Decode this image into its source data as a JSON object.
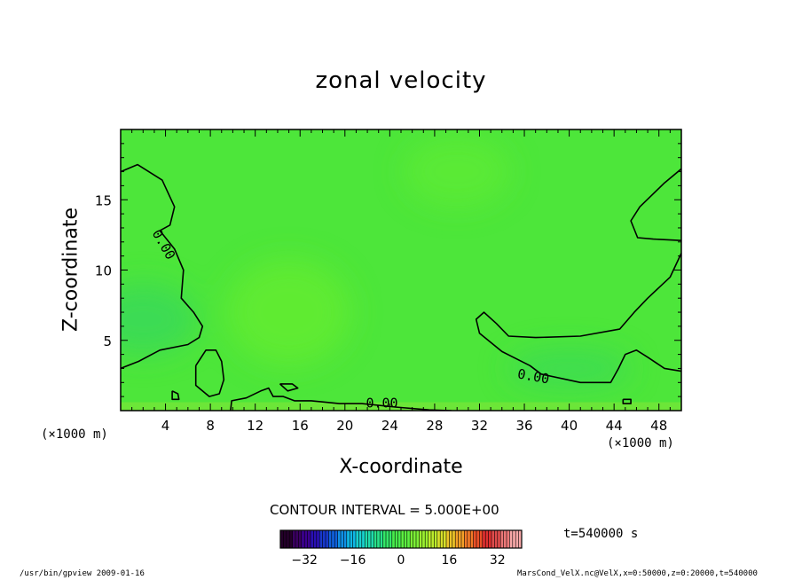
{
  "chart_data": {
    "type": "contour",
    "title": "zonal velocity",
    "xlabel": "X-coordinate",
    "ylabel": "Z-coordinate",
    "x_unit": "(×1000 m)",
    "xlim": [
      0,
      50
    ],
    "ylim": [
      0,
      20
    ],
    "x_ticks": [
      4,
      8,
      12,
      16,
      20,
      24,
      28,
      32,
      36,
      40,
      44,
      48
    ],
    "y_ticks": [
      5,
      10,
      15
    ],
    "contour_interval_text": "CONTOUR INTERVAL = 5.000E+00",
    "contour_labels": [
      {
        "text": "0.00",
        "x": 3.8,
        "y": 11.8,
        "rotation": 60
      },
      {
        "text": "0.00",
        "x": 23.3,
        "y": 0.5,
        "rotation": 0
      },
      {
        "text": "0.00",
        "x": 36.8,
        "y": 2.4,
        "rotation": 10
      }
    ],
    "contours": [
      {
        "level": 0,
        "points": [
          [
            0,
            17.0
          ],
          [
            1.5,
            17.5
          ],
          [
            3.7,
            16.4
          ],
          [
            4.8,
            14.5
          ],
          [
            4.4,
            13.2
          ],
          [
            3.5,
            12.8
          ],
          [
            4.8,
            11.5
          ],
          [
            5.6,
            10.0
          ],
          [
            5.4,
            8.0
          ],
          [
            6.5,
            7.0
          ],
          [
            7.3,
            6.0
          ],
          [
            7.0,
            5.2
          ],
          [
            6.0,
            4.7
          ],
          [
            3.5,
            4.3
          ],
          [
            1.6,
            3.5
          ],
          [
            0,
            3.0
          ]
        ]
      },
      {
        "level": 0,
        "points": [
          [
            6.7,
            3.2
          ],
          [
            7.6,
            4.3
          ],
          [
            8.5,
            4.3
          ],
          [
            9.0,
            3.5
          ],
          [
            9.2,
            2.2
          ],
          [
            8.8,
            1.2
          ],
          [
            7.9,
            1.0
          ],
          [
            6.7,
            1.8
          ],
          [
            6.7,
            3.2
          ]
        ]
      },
      {
        "level": 0,
        "points": [
          [
            4.6,
            1.4
          ],
          [
            5.1,
            1.2
          ],
          [
            5.2,
            0.8
          ],
          [
            4.6,
            0.8
          ],
          [
            4.6,
            1.4
          ]
        ]
      },
      {
        "level": 0,
        "points": [
          [
            9.8,
            0
          ],
          [
            9.9,
            0.7
          ],
          [
            11.2,
            0.9
          ],
          [
            12.5,
            1.4
          ],
          [
            13.2,
            1.6
          ],
          [
            13.6,
            1.0
          ],
          [
            14.5,
            1.0
          ],
          [
            15.5,
            0.7
          ],
          [
            17.0,
            0.7
          ],
          [
            19.5,
            0.5
          ],
          [
            21.5,
            0.5
          ],
          [
            24.5,
            0.25
          ],
          [
            27.5,
            0.05
          ],
          [
            29.5,
            0
          ]
        ]
      },
      {
        "level": 0,
        "points": [
          [
            14.2,
            1.9
          ],
          [
            15.3,
            1.9
          ],
          [
            15.8,
            1.6
          ],
          [
            14.9,
            1.4
          ],
          [
            14.2,
            1.9
          ]
        ]
      },
      {
        "level": 0,
        "points": [
          [
            50,
            2.8
          ],
          [
            48.5,
            3.0
          ],
          [
            47.0,
            3.8
          ],
          [
            46.0,
            4.3
          ],
          [
            45.0,
            4.0
          ],
          [
            44.4,
            3.0
          ],
          [
            43.7,
            2.0
          ],
          [
            41.0,
            2.0
          ],
          [
            37.5,
            2.6
          ],
          [
            36.5,
            3.2
          ],
          [
            34.0,
            4.2
          ],
          [
            32.0,
            5.5
          ],
          [
            31.7,
            6.5
          ],
          [
            32.4,
            7.0
          ],
          [
            33.5,
            6.2
          ],
          [
            34.6,
            5.3
          ],
          [
            37.0,
            5.2
          ],
          [
            41.0,
            5.3
          ],
          [
            44.5,
            5.8
          ],
          [
            45.8,
            7.0
          ],
          [
            47.0,
            8.0
          ],
          [
            49.0,
            9.5
          ],
          [
            50,
            11.2
          ]
        ]
      },
      {
        "level": 0,
        "points": [
          [
            50,
            17.2
          ],
          [
            48.5,
            16.2
          ],
          [
            46.3,
            14.5
          ],
          [
            45.5,
            13.5
          ],
          [
            46.1,
            12.3
          ],
          [
            47.5,
            12.2
          ],
          [
            50,
            12.1
          ]
        ]
      },
      {
        "level": 0,
        "points": [
          [
            44.8,
            0.8
          ],
          [
            45.5,
            0.8
          ],
          [
            45.5,
            0.5
          ],
          [
            44.8,
            0.5
          ],
          [
            44.8,
            0.8
          ]
        ]
      }
    ],
    "colorbar": {
      "ticks": [
        -32,
        -16,
        0,
        16,
        32
      ],
      "range": [
        -40,
        40
      ],
      "colors": [
        "#24002a",
        "#3a0060",
        "#3c0090",
        "#2a10b4",
        "#1838cc",
        "#1060dc",
        "#1090e6",
        "#10b8e6",
        "#18d2d0",
        "#20dcae",
        "#28e28a",
        "#34e868",
        "#48ec4c",
        "#5cf040",
        "#7cf036",
        "#9cf030",
        "#bcec2c",
        "#d8e02a",
        "#ecc428",
        "#f4a028",
        "#f47a28",
        "#ec5028",
        "#e03030",
        "#e04c4c",
        "#ec7878",
        "#f8a8a8"
      ]
    },
    "time_text": "t=540000 s"
  },
  "footer": {
    "left": "/usr/bin/gpview  2009-01-16",
    "right": "MarsCond_VelX.nc@VelX,x=0:50000,z=0:20000,t=540000"
  },
  "colors": {
    "field_base": "#4de63a",
    "field_dark": "#38d85a",
    "field_light": "#64ec30"
  }
}
